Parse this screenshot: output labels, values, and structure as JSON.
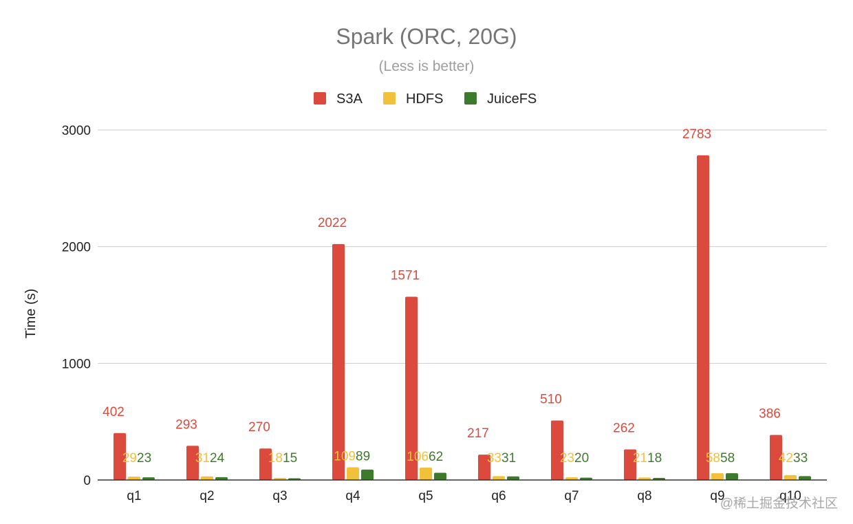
{
  "chart_data": {
    "type": "bar",
    "title": "Spark (ORC, 20G)",
    "subtitle": "(Less is better)",
    "xlabel": "",
    "ylabel": "Time (s)",
    "ylim": [
      0,
      3000
    ],
    "yticks": [
      "0",
      "1000",
      "2000",
      "3000"
    ],
    "grid": true,
    "legend_position": "top-center",
    "categories": [
      "q1",
      "q2",
      "q3",
      "q4",
      "q5",
      "q6",
      "q7",
      "q8",
      "q9",
      "q10"
    ],
    "series": [
      {
        "name": "S3A",
        "color": "#db4a3c",
        "values": [
          402,
          293,
          270,
          2022,
          1571,
          217,
          510,
          262,
          2783,
          386
        ],
        "labels": [
          "402",
          "293",
          "270",
          "2022",
          "1571",
          "217",
          "510",
          "262",
          "2783",
          "386"
        ]
      },
      {
        "name": "HDFS",
        "color": "#f2c13b",
        "values": [
          29,
          31,
          18,
          109,
          106,
          33,
          23,
          21,
          58,
          42
        ],
        "labels": [
          "29",
          "31",
          "18",
          "109",
          "106",
          "33",
          "23",
          "21",
          "58",
          "42"
        ]
      },
      {
        "name": "JuiceFS",
        "color": "#3e7a2b",
        "values": [
          23,
          24,
          15,
          89,
          62,
          31,
          20,
          18,
          58,
          33
        ],
        "labels": [
          "23",
          "24",
          "15",
          "89",
          "62",
          "31",
          "20",
          "18",
          "58",
          "33"
        ]
      }
    ]
  },
  "watermark": "@稀土掘金技术社区",
  "colors": {
    "title": "#757575",
    "subtitle": "#9e9e9e",
    "axis_text": "#222222",
    "grid": "#cccccc",
    "baseline": "#333333",
    "watermark": "#a8a8a8"
  }
}
